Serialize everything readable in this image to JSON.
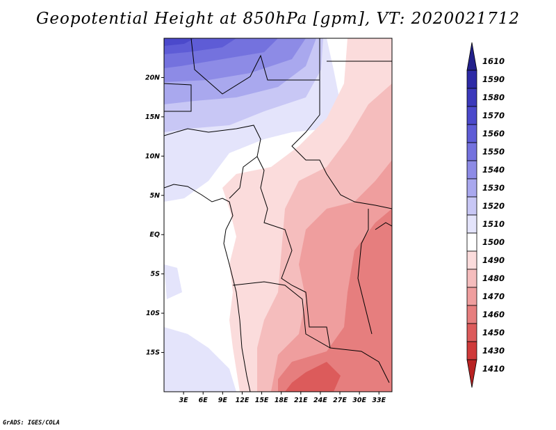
{
  "title": "Geopotential Height at 850hPa [gpm], VT: 2020021712",
  "credit": "GrADS: IGES/COLA",
  "map": {
    "lon_range": [
      0,
      35
    ],
    "lat_range": [
      -20,
      25
    ],
    "lat_labels": [
      "20N",
      "15N",
      "10N",
      "5N",
      "EQ",
      "5S",
      "10S",
      "15S"
    ],
    "lat_values": [
      20,
      15,
      10,
      5,
      0,
      -5,
      -10,
      -15
    ],
    "lon_labels": [
      "3E",
      "6E",
      "9E",
      "12E",
      "15E",
      "18E",
      "21E",
      "24E",
      "27E",
      "30E",
      "33E"
    ],
    "lon_values": [
      3,
      6,
      9,
      12,
      15,
      18,
      21,
      24,
      27,
      30,
      33
    ]
  },
  "colorbar": {
    "labels": [
      "1610",
      "1590",
      "1580",
      "1570",
      "1560",
      "1550",
      "1540",
      "1530",
      "1520",
      "1510",
      "1500",
      "1490",
      "1480",
      "1470",
      "1460",
      "1450",
      "1430",
      "1410"
    ],
    "colors": [
      "#22208a",
      "#2d2aa6",
      "#3b39bb",
      "#4b49cb",
      "#5e5cd6",
      "#7472de",
      "#8d8be6",
      "#a9a8ee",
      "#c8c7f5",
      "#e4e4fb",
      "#ffffff",
      "#fbdcdc",
      "#f5bdbd",
      "#ef9e9e",
      "#e67e7e",
      "#dc5b5b",
      "#cf3a3a",
      "#b82222"
    ]
  }
}
